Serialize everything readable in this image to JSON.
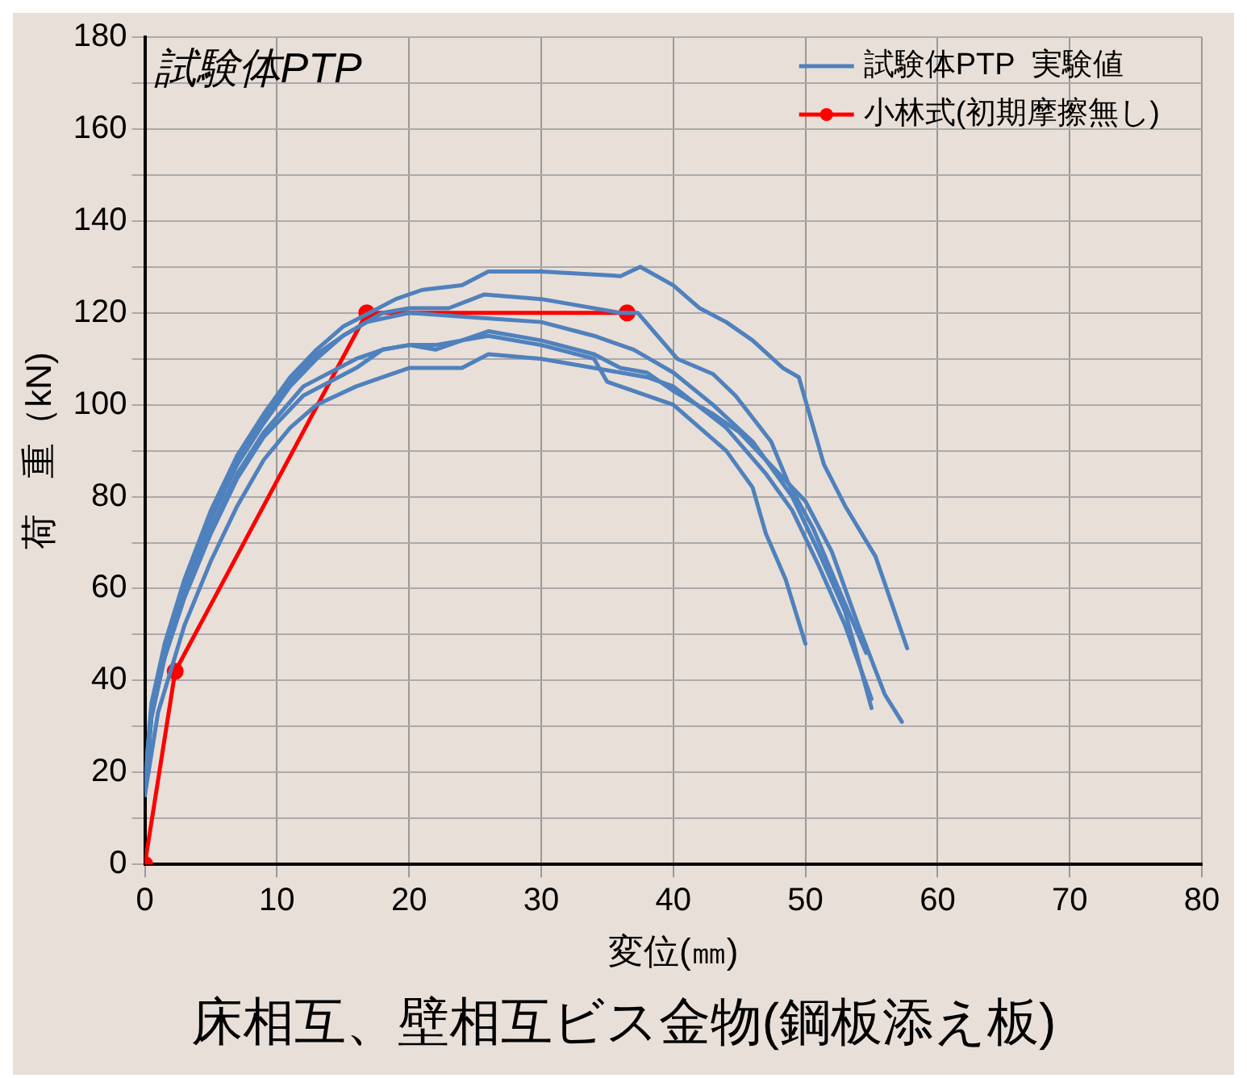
{
  "chart_data": {
    "type": "line",
    "title": "床相互、壁相互ビス金物(鋼板添え板)",
    "xlabel": "変位(㎜)",
    "ylabel": "荷　重（kN)",
    "annotations": [
      "試験体PTP"
    ],
    "xlim": [
      0,
      80
    ],
    "xticks": [
      0,
      10,
      20,
      30,
      40,
      50,
      60,
      70,
      80
    ],
    "ylim": [
      0,
      180
    ],
    "yticks": [
      0,
      {
        "value": 10,
        "label": null
      },
      20,
      {
        "value": 30,
        "label": null
      },
      40,
      {
        "value": 50,
        "label": null
      },
      60,
      {
        "value": 70,
        "label": null
      },
      80,
      {
        "value": 90,
        "label": null
      },
      100,
      {
        "value": 110,
        "label": null
      },
      120,
      {
        "value": 130,
        "label": null
      },
      140,
      {
        "value": 150,
        "label": null
      },
      160,
      {
        "value": 170,
        "label": null
      },
      180
    ],
    "grid": true,
    "legend": "top right",
    "marker": "none",
    "line_style": "solid",
    "series": [
      {
        "name": "試験体PTP  実験値",
        "color": "#4f81bd",
        "x": [
          0,
          0.5,
          1.5,
          3,
          5,
          7,
          9,
          11,
          13,
          15,
          17,
          19,
          21,
          24,
          26,
          30,
          36,
          37.5,
          40,
          42,
          44,
          46,
          48.3,
          49.5,
          51.4,
          53,
          55.3,
          56.5,
          57.7
        ],
        "values": [
          18,
          35,
          48,
          62,
          77,
          89,
          98,
          106,
          112,
          117,
          120,
          123,
          125,
          126,
          129,
          129,
          128,
          130,
          126,
          121,
          118,
          114,
          108,
          106,
          87,
          78,
          67,
          57,
          47
        ]
      },
      {
        "color": "#4f81bd",
        "x": [
          0,
          0.5,
          1.5,
          3,
          5,
          7,
          9,
          11,
          13,
          15,
          18,
          20,
          23,
          25.7,
          30,
          36,
          37.3,
          40.3,
          43,
          44.7,
          47.4,
          48.7,
          50.6,
          52.5,
          54.6
        ],
        "values": [
          17,
          34,
          47,
          61,
          76,
          88,
          97,
          105,
          111,
          115,
          120,
          121,
          121,
          124,
          123,
          120,
          120,
          110,
          106.7,
          102,
          92,
          83,
          73,
          60,
          46
        ]
      },
      {
        "color": "#4f81bd",
        "x": [
          0,
          0.5,
          1.5,
          3,
          5,
          7,
          9,
          11,
          13,
          15,
          16.8,
          20,
          25,
          30,
          34,
          37,
          40,
          43,
          46,
          49,
          51,
          53,
          55
        ],
        "values": [
          16,
          33,
          46,
          60,
          75,
          87,
          96,
          104,
          110,
          115,
          118,
          120,
          119,
          118,
          115,
          112,
          107,
          100,
          92,
          80,
          68,
          55,
          34
        ]
      },
      {
        "color": "#4f81bd",
        "x": [
          0,
          0.5,
          1.5,
          3,
          5,
          7,
          9,
          12,
          16,
          18,
          20,
          22,
          24,
          26,
          30,
          34,
          36,
          38,
          40,
          43,
          45,
          48,
          50,
          52,
          54,
          56,
          57.3
        ],
        "values": [
          16,
          32,
          45,
          59,
          73,
          85,
          94,
          104,
          110,
          112,
          113,
          113,
          114,
          116,
          114,
          111,
          108,
          107,
          103,
          98,
          94,
          85,
          79,
          68,
          52,
          37,
          31
        ]
      },
      {
        "color": "#4f81bd",
        "x": [
          0,
          0.5,
          1.5,
          3,
          5,
          7,
          9,
          12,
          16,
          18,
          20,
          22,
          24,
          26,
          30,
          34,
          35,
          36,
          40,
          42,
          44,
          46,
          47,
          48.5,
          50
        ],
        "values": [
          15,
          32,
          45,
          58,
          72,
          84,
          93,
          102,
          108,
          112,
          113,
          112,
          114,
          115,
          113,
          110,
          105,
          104,
          100,
          95,
          90,
          82,
          72,
          62,
          48
        ]
      },
      {
        "color": "#4f81bd",
        "x": [
          0,
          1,
          3,
          5,
          7,
          9,
          11,
          13,
          16,
          18,
          20,
          24,
          26,
          30,
          34,
          38,
          40,
          44,
          47,
          49,
          51,
          53,
          55
        ],
        "values": [
          15,
          33,
          52,
          66,
          78,
          88,
          95,
          100,
          104,
          106,
          108,
          108,
          111,
          110,
          108,
          106,
          104,
          95,
          85,
          77,
          65,
          52,
          36
        ]
      },
      {
        "name": "小林式(初期摩擦無し)",
        "color": "#ff0000",
        "marker": "circle",
        "x": [
          0,
          2.3,
          16.8,
          36.5
        ],
        "values": [
          0,
          42,
          120,
          120
        ]
      }
    ]
  }
}
